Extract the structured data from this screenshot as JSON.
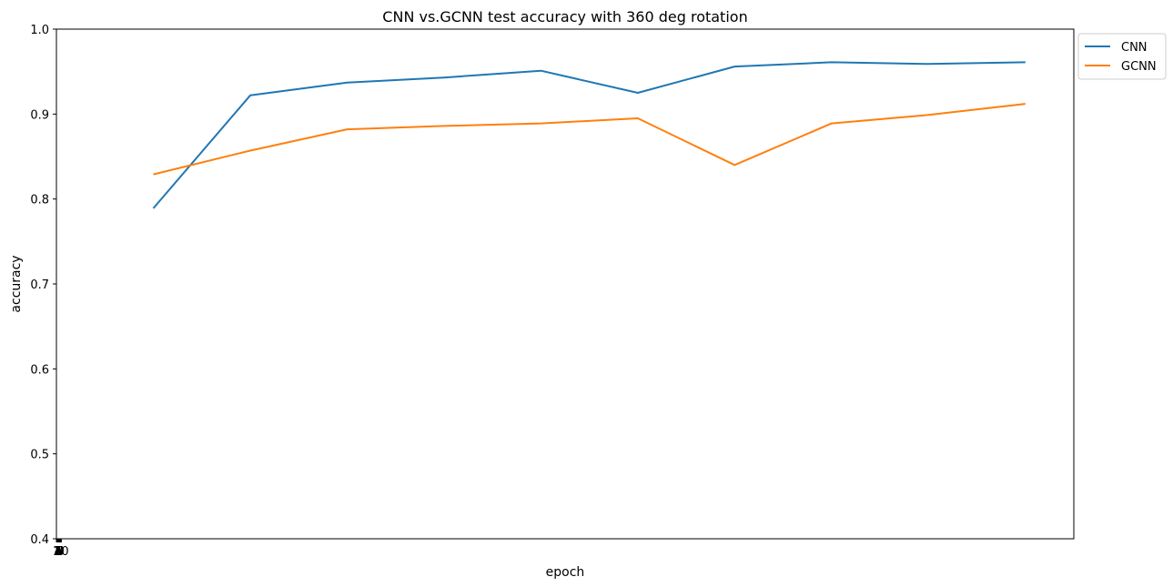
{
  "chart_data": {
    "type": "line",
    "title": "CNN vs.GCNN test accuracy with 360 deg rotation",
    "xlabel": "epoch",
    "ylabel": "accuracy",
    "ylim": [
      0.4,
      1.0
    ],
    "xlim": [
      0,
      10.5
    ],
    "x": [
      1,
      2,
      3,
      4,
      5,
      6,
      7,
      8,
      9,
      10
    ],
    "xtick_labels": [
      "1",
      "2",
      "3",
      "4",
      "5",
      "6",
      "7",
      "8",
      "9",
      "10"
    ],
    "ytick_values": [
      0.4,
      0.5,
      0.6,
      0.7,
      0.8,
      0.9,
      1.0
    ],
    "ytick_labels": [
      "0.4",
      "0.5",
      "0.6",
      "0.7",
      "0.8",
      "0.9",
      "1.0"
    ],
    "grid": false,
    "legend_position": "outside-top-right",
    "series": [
      {
        "name": "CNN",
        "color": "#1f77b4",
        "values": [
          0.789,
          0.922,
          0.937,
          0.943,
          0.951,
          0.925,
          0.956,
          0.961,
          0.959,
          0.961
        ]
      },
      {
        "name": "GCNN",
        "color": "#ff7f0e",
        "values": [
          0.829,
          0.857,
          0.882,
          0.886,
          0.889,
          0.895,
          0.84,
          0.889,
          0.899,
          0.912
        ]
      }
    ]
  }
}
